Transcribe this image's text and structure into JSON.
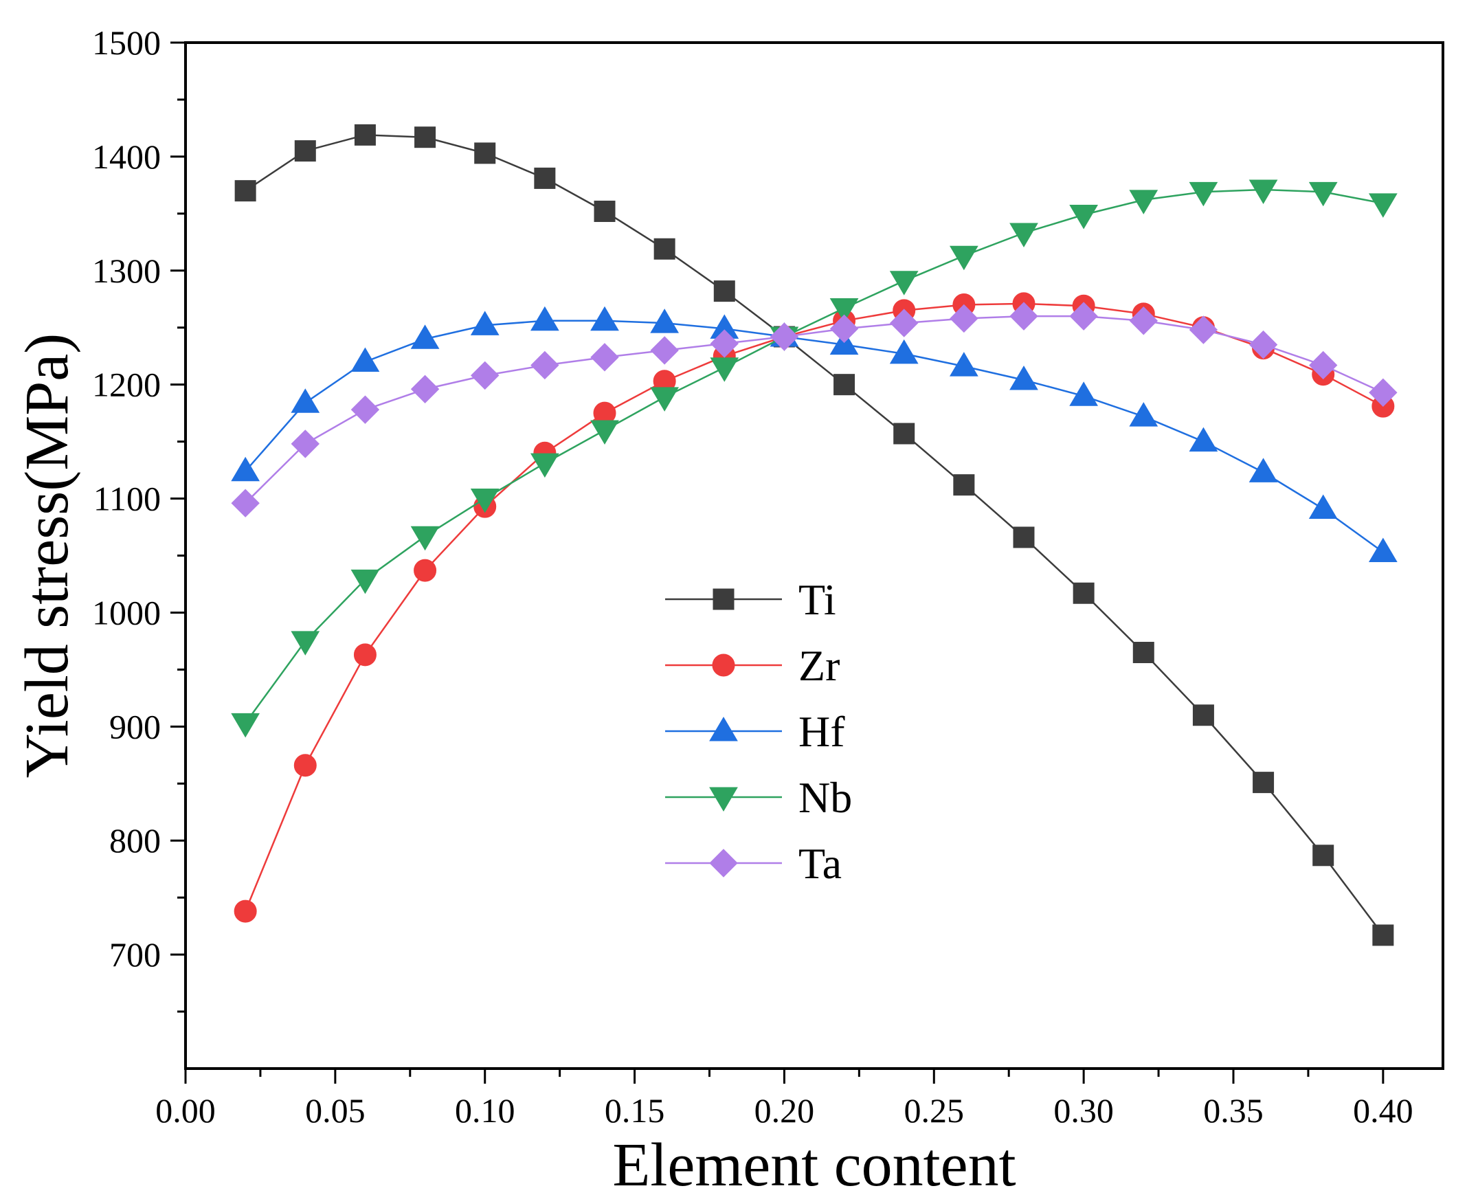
{
  "chart_data": {
    "type": "line",
    "title": "",
    "xlabel": "Element content",
    "ylabel": "Yield stress(MPa)",
    "xlim": [
      0.0,
      0.42
    ],
    "ylim": [
      600,
      1500
    ],
    "xticks": [
      0.0,
      0.05,
      0.1,
      0.15,
      0.2,
      0.25,
      0.3,
      0.35,
      0.4
    ],
    "xtick_labels": [
      "0.00",
      "0.05",
      "0.10",
      "0.15",
      "0.20",
      "0.25",
      "0.30",
      "0.35",
      "0.40"
    ],
    "yticks": [
      700,
      800,
      900,
      1000,
      1100,
      1200,
      1300,
      1400,
      1500
    ],
    "ytick_labels": [
      "700",
      "800",
      "900",
      "1000",
      "1100",
      "1200",
      "1300",
      "1400",
      "1500"
    ],
    "legend_position": "center",
    "x": [
      0.02,
      0.04,
      0.06,
      0.08,
      0.1,
      0.12,
      0.14,
      0.16,
      0.18,
      0.2,
      0.22,
      0.24,
      0.26,
      0.28,
      0.3,
      0.32,
      0.34,
      0.36,
      0.38,
      0.4
    ],
    "series": [
      {
        "name": "Ti",
        "marker": "square",
        "color": "#3c3c3c",
        "values": [
          1370,
          1405,
          1419,
          1417,
          1403,
          1381,
          1352,
          1319,
          1282,
          1242,
          1200,
          1157,
          1112,
          1066,
          1017,
          965,
          910,
          851,
          787,
          717
        ]
      },
      {
        "name": "Zr",
        "marker": "circle",
        "color": "#ee3b3b",
        "values": [
          738,
          866,
          963,
          1037,
          1093,
          1140,
          1175,
          1203,
          1225,
          1242,
          1256,
          1265,
          1270,
          1271,
          1269,
          1262,
          1250,
          1232,
          1209,
          1181
        ]
      },
      {
        "name": "Hf",
        "marker": "triangle-up",
        "color": "#1f6fe0",
        "values": [
          1124,
          1184,
          1220,
          1240,
          1252,
          1256,
          1256,
          1254,
          1249,
          1242,
          1235,
          1227,
          1216,
          1204,
          1190,
          1172,
          1150,
          1123,
          1091,
          1053
        ]
      },
      {
        "name": "Nb",
        "marker": "triangle-down",
        "color": "#2ea35f",
        "values": [
          903,
          975,
          1029,
          1067,
          1100,
          1131,
          1160,
          1189,
          1215,
          1242,
          1267,
          1291,
          1313,
          1333,
          1349,
          1362,
          1369,
          1371,
          1369,
          1359
        ]
      },
      {
        "name": "Ta",
        "marker": "diamond",
        "color": "#b07ee8",
        "values": [
          1096,
          1148,
          1178,
          1196,
          1208,
          1217,
          1224,
          1230,
          1236,
          1242,
          1249,
          1254,
          1258,
          1260,
          1260,
          1256,
          1248,
          1235,
          1217,
          1193
        ]
      }
    ]
  }
}
